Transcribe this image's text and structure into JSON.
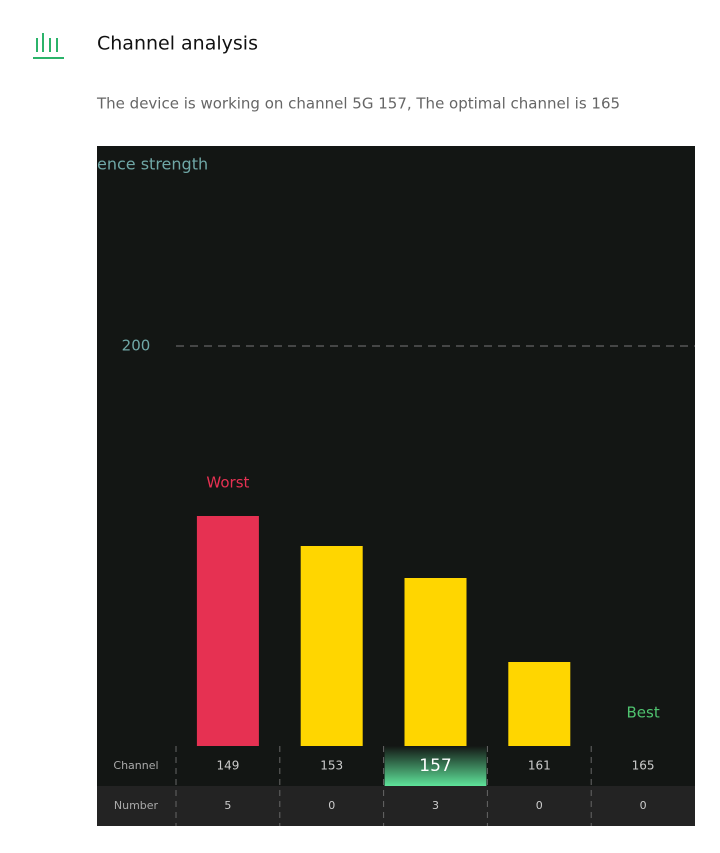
{
  "header": {
    "title": "Channel analysis",
    "description": "The device is working on channel 5G 157, The optimal channel is 165"
  },
  "chart_data": {
    "type": "bar",
    "y_label": "ence strength",
    "categories": [
      "149",
      "153",
      "157",
      "161",
      "165"
    ],
    "values": [
      115,
      100,
      84,
      42,
      0
    ],
    "colors": [
      "#e63152",
      "#ffd600",
      "#ffd600",
      "#ffd600",
      "#ffd600"
    ],
    "ylim": [
      0,
      300
    ],
    "yticks": [
      200
    ],
    "grid": true,
    "selected_category": "157",
    "annotations": [
      {
        "text": "Worst",
        "x": "149",
        "color": "#e63152"
      },
      {
        "text": "Best",
        "x": "165",
        "color": "#4fc36f"
      }
    ],
    "row_labels": {
      "channel": "Channel",
      "number": "Number"
    },
    "counts": [
      5,
      0,
      3,
      0,
      0
    ]
  }
}
